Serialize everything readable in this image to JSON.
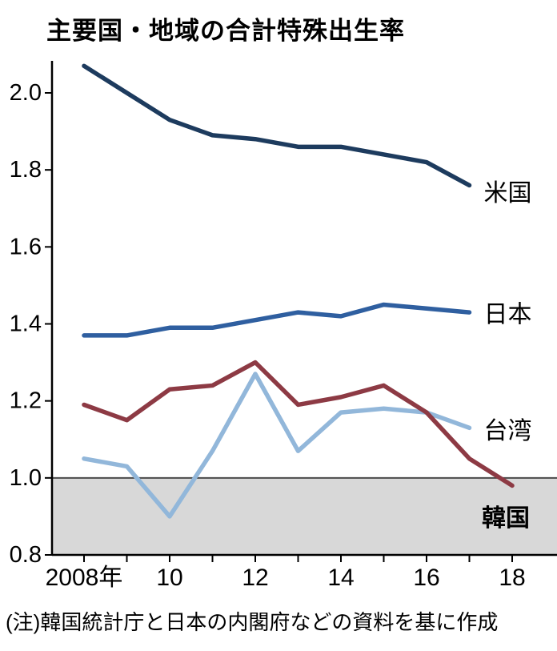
{
  "note": "(注)韓国統計庁と日本の内閣府などの資料を基に作成",
  "chart_data": {
    "type": "line",
    "title": "主要国・地域の合計特殊出生率",
    "xlabel": "",
    "ylabel": "",
    "x": [
      2008,
      2009,
      2010,
      2011,
      2012,
      2013,
      2014,
      2015,
      2016,
      2017,
      2018
    ],
    "xticks": [
      2008,
      2010,
      2012,
      2014,
      2016,
      2018
    ],
    "xtick_labels": [
      "2008年",
      "10",
      "12",
      "14",
      "16",
      "18"
    ],
    "ytick_values": [
      2.0,
      1.8,
      1.6,
      1.4,
      1.2,
      1.0,
      0.8
    ],
    "yticks": [
      "2.0",
      "1.8",
      "1.6",
      "1.4",
      "1.2",
      "1.0",
      "0.8"
    ],
    "ylim": [
      0.8,
      2.1
    ],
    "grid": false,
    "legend_position": "right-inline",
    "shaded_region": {
      "below": 1.0,
      "color": "#d8d8d8"
    },
    "series": [
      {
        "id": "us",
        "name": "米国",
        "color": "#1d3b5e",
        "values": [
          2.07,
          2.0,
          1.93,
          1.89,
          1.88,
          1.86,
          1.86,
          1.84,
          1.82,
          1.76,
          null
        ]
      },
      {
        "id": "japan",
        "name": "日本",
        "color": "#2f5fa0",
        "values": [
          1.37,
          1.37,
          1.39,
          1.39,
          1.41,
          1.43,
          1.42,
          1.45,
          1.44,
          1.43,
          null
        ]
      },
      {
        "id": "taiwan",
        "name": "台湾",
        "color": "#92b7da",
        "values": [
          1.05,
          1.03,
          0.9,
          1.07,
          1.27,
          1.07,
          1.17,
          1.18,
          1.17,
          1.13,
          null
        ]
      },
      {
        "id": "korea",
        "name": "韓国",
        "color": "#8d3a44",
        "values": [
          1.19,
          1.15,
          1.23,
          1.24,
          1.3,
          1.19,
          1.21,
          1.24,
          1.17,
          1.05,
          0.98
        ]
      }
    ]
  }
}
